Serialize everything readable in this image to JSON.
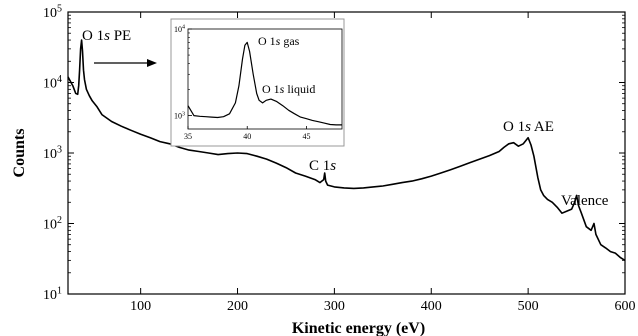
{
  "chart_data": {
    "type": "line",
    "xlabel": "Kinetic energy (eV)",
    "ylabel": "Counts",
    "xlim": [
      25,
      600
    ],
    "ylim": [
      10,
      100000
    ],
    "yscale": "log",
    "grid": false,
    "x_ticks": [
      100,
      200,
      300,
      400,
      500,
      600
    ],
    "y_ticks": [
      {
        "value": 10,
        "base": "10",
        "exp": "1"
      },
      {
        "value": 100,
        "base": "10",
        "exp": "2"
      },
      {
        "value": 1000,
        "base": "10",
        "exp": "3"
      },
      {
        "value": 10000,
        "base": "10",
        "exp": "4"
      },
      {
        "value": 100000,
        "base": "10",
        "exp": "5"
      }
    ],
    "annotations": {
      "o1s_pe": {
        "pre": "O 1",
        "ital": "s",
        "post": " PE"
      },
      "c1s": {
        "pre": "C 1",
        "ital": "s",
        "post": ""
      },
      "o1s_ae": {
        "pre": "O 1",
        "ital": "s",
        "post": " AE"
      },
      "valence": {
        "pre": "Valence",
        "ital": "",
        "post": ""
      }
    },
    "series": [
      {
        "x": [
          25,
          30,
          33,
          35,
          36,
          37,
          38,
          39,
          40,
          41,
          42,
          44,
          47,
          50,
          55,
          60,
          70,
          80,
          90,
          100,
          110,
          120,
          130,
          140,
          150,
          160,
          170,
          180,
          190,
          200,
          210,
          220,
          230,
          240,
          250,
          260,
          270,
          280,
          285,
          289,
          290,
          291,
          293,
          300,
          310,
          320,
          330,
          340,
          350,
          360,
          370,
          380,
          390,
          400,
          410,
          420,
          430,
          440,
          450,
          460,
          470,
          475,
          480,
          485,
          490,
          495,
          500,
          503,
          506,
          510,
          513,
          516,
          520,
          525,
          530,
          535,
          540,
          545,
          548,
          550,
          552,
          555,
          560,
          565,
          568,
          570,
          575,
          580,
          585,
          590,
          595,
          600
        ],
        "y": [
          12000,
          9000,
          7000,
          6800,
          9000,
          15000,
          30000,
          40000,
          28000,
          15000,
          11000,
          8000,
          6500,
          5500,
          4500,
          3500,
          2800,
          2400,
          2100,
          1850,
          1650,
          1450,
          1350,
          1200,
          1100,
          1050,
          1000,
          950,
          980,
          1000,
          980,
          900,
          820,
          720,
          620,
          520,
          470,
          420,
          380,
          420,
          520,
          400,
          350,
          330,
          320,
          315,
          320,
          330,
          340,
          360,
          380,
          400,
          430,
          470,
          520,
          580,
          650,
          730,
          820,
          920,
          1050,
          1200,
          1350,
          1400,
          1250,
          1350,
          1650,
          1300,
          900,
          450,
          300,
          250,
          220,
          200,
          170,
          140,
          150,
          160,
          200,
          250,
          180,
          140,
          90,
          80,
          100,
          70,
          50,
          45,
          40,
          38,
          33,
          30
        ]
      }
    ],
    "inset": {
      "xlim": [
        35,
        48
      ],
      "ylim": [
        700,
        10000
      ],
      "yscale": "log",
      "x_ticks": [
        35,
        40,
        45
      ],
      "y_ticks": [
        {
          "value": 1000,
          "base": "10",
          "exp": "3"
        },
        {
          "value": 10000,
          "base": "10",
          "exp": "4"
        }
      ],
      "annotations": {
        "gas": {
          "pre": "O 1",
          "ital": "s",
          "post": " gas"
        },
        "liquid": {
          "pre": "O 1",
          "ital": "s",
          "post": " liquid"
        }
      },
      "series": [
        {
          "x": [
            35,
            35.5,
            36,
            36.5,
            37,
            37.5,
            38,
            38.5,
            39,
            39.3,
            39.6,
            39.8,
            40,
            40.2,
            40.5,
            40.8,
            41,
            41.3,
            41.6,
            42,
            42.5,
            43,
            43.5,
            44,
            44.5,
            45,
            45.5,
            46,
            46.5,
            47,
            47.5,
            48
          ],
          "y": [
            1300,
            1000,
            980,
            970,
            960,
            950,
            970,
            1050,
            1400,
            2200,
            4500,
            6500,
            7000,
            5500,
            3000,
            1800,
            1500,
            1400,
            1500,
            1550,
            1450,
            1300,
            1150,
            1050,
            960,
            920,
            880,
            850,
            820,
            790,
            780,
            780
          ]
        }
      ]
    }
  }
}
